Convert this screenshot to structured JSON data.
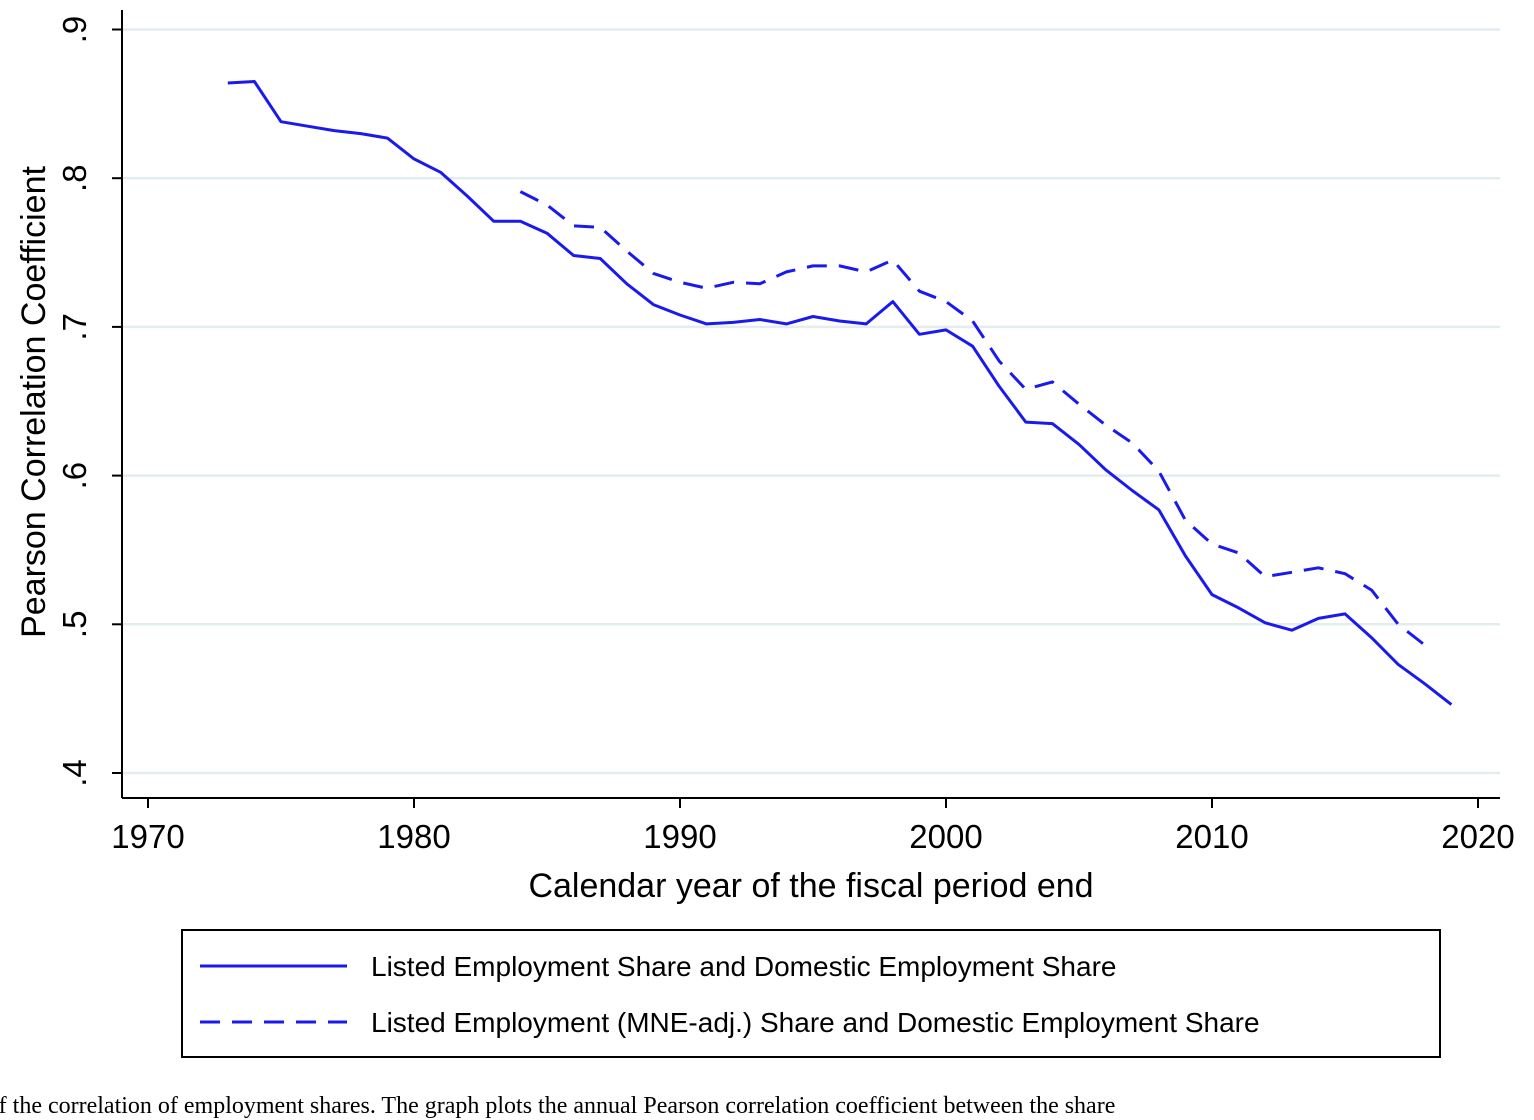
{
  "chart_data": {
    "type": "line",
    "xlabel": "Calendar year of the fiscal period end",
    "ylabel": "Pearson Correlation Coefficient",
    "xlim": [
      1970,
      2020
    ],
    "ylim": [
      0.4,
      0.9
    ],
    "xticks": [
      1970,
      1980,
      1990,
      2000,
      2010,
      2020
    ],
    "xtick_labels": [
      "1970",
      "1980",
      "1990",
      "2000",
      "2010",
      "2020"
    ],
    "yticks": [
      0.4,
      0.5,
      0.6,
      0.7,
      0.8,
      0.9
    ],
    "ytick_labels": [
      ".4",
      ".5",
      ".6",
      ".7",
      ".8",
      ".9"
    ],
    "grid": true,
    "legend_position": "bottom",
    "series": [
      {
        "name": "Listed Employment Share and Domestic Employment Share",
        "style": "solid",
        "color": "#1a1aee",
        "x": [
          1973,
          1974,
          1975,
          1976,
          1977,
          1978,
          1979,
          1980,
          1981,
          1982,
          1983,
          1984,
          1985,
          1986,
          1987,
          1988,
          1989,
          1990,
          1991,
          1992,
          1993,
          1994,
          1995,
          1996,
          1997,
          1998,
          1999,
          2000,
          2001,
          2002,
          2003,
          2004,
          2005,
          2006,
          2007,
          2008,
          2009,
          2010,
          2011,
          2012,
          2013,
          2014,
          2015,
          2016,
          2017,
          2018,
          2019
        ],
        "y": [
          0.864,
          0.865,
          0.838,
          0.835,
          0.832,
          0.83,
          0.827,
          0.813,
          0.804,
          0.788,
          0.771,
          0.771,
          0.763,
          0.748,
          0.746,
          0.729,
          0.715,
          0.708,
          0.702,
          0.703,
          0.705,
          0.702,
          0.707,
          0.704,
          0.702,
          0.717,
          0.695,
          0.698,
          0.687,
          0.66,
          0.636,
          0.635,
          0.621,
          0.604,
          0.59,
          0.577,
          0.546,
          0.52,
          0.511,
          0.501,
          0.496,
          0.504,
          0.507,
          0.491,
          0.473,
          0.46,
          0.446
        ]
      },
      {
        "name": "Listed Employment (MNE-adj.) Share and Domestic Employment Share",
        "style": "dashed",
        "color": "#1a1aee",
        "x": [
          1984,
          1985,
          1986,
          1987,
          1988,
          1989,
          1990,
          1991,
          1992,
          1993,
          1994,
          1995,
          1996,
          1997,
          1998,
          1999,
          2000,
          2001,
          2002,
          2003,
          2004,
          2005,
          2006,
          2007,
          2008,
          2009,
          2010,
          2011,
          2012,
          2013,
          2014,
          2015,
          2016,
          2017,
          2018
        ],
        "y": [
          0.791,
          0.782,
          0.768,
          0.767,
          0.751,
          0.736,
          0.73,
          0.726,
          0.73,
          0.729,
          0.737,
          0.741,
          0.741,
          0.737,
          0.745,
          0.724,
          0.717,
          0.704,
          0.677,
          0.658,
          0.663,
          0.648,
          0.634,
          0.622,
          0.603,
          0.57,
          0.554,
          0.548,
          0.532,
          0.535,
          0.538,
          0.534,
          0.523,
          0.5,
          0.486
        ]
      }
    ]
  },
  "caption": "e of the correlation of employment shares. The graph plots the annual Pearson correlation coefficient between the share"
}
